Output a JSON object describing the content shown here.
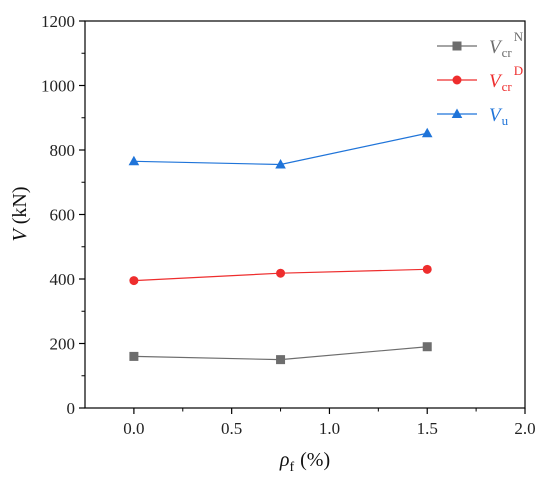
{
  "chart_data": {
    "type": "line",
    "xlabel": {
      "symbol": "ρ",
      "sub": "f",
      "unit": "(%)"
    },
    "ylabel": {
      "symbol": "V",
      "unit": "(kN)"
    },
    "xlim": [
      -0.25,
      2.0
    ],
    "ylim": [
      0,
      1200
    ],
    "xticks": [
      0.0,
      0.5,
      1.0,
      1.5,
      2.0
    ],
    "xtick_labels": [
      "0.0",
      "0.5",
      "1.0",
      "1.5",
      "2.0"
    ],
    "yticks": [
      0,
      200,
      400,
      600,
      800,
      1000,
      1200
    ],
    "ytick_labels": [
      "0",
      "200",
      "400",
      "600",
      "800",
      "1000",
      "1200"
    ],
    "grid": false,
    "legend_position": "top-right",
    "x": [
      0.0,
      0.75,
      1.5
    ],
    "series": [
      {
        "key": "vcrN",
        "symbol": "V",
        "sub": "cr",
        "sup": "N",
        "marker": "square",
        "color": "#6d6d6d",
        "values": [
          160,
          150,
          190
        ]
      },
      {
        "key": "vcrD",
        "symbol": "V",
        "sub": "cr",
        "sup": "D",
        "marker": "circle",
        "color": "#ee2d2d",
        "values": [
          395,
          418,
          430
        ]
      },
      {
        "key": "vu",
        "symbol": "V",
        "sub": "u",
        "sup": "",
        "marker": "triangle",
        "color": "#1f74d9",
        "values": [
          765,
          755,
          852
        ]
      }
    ]
  }
}
